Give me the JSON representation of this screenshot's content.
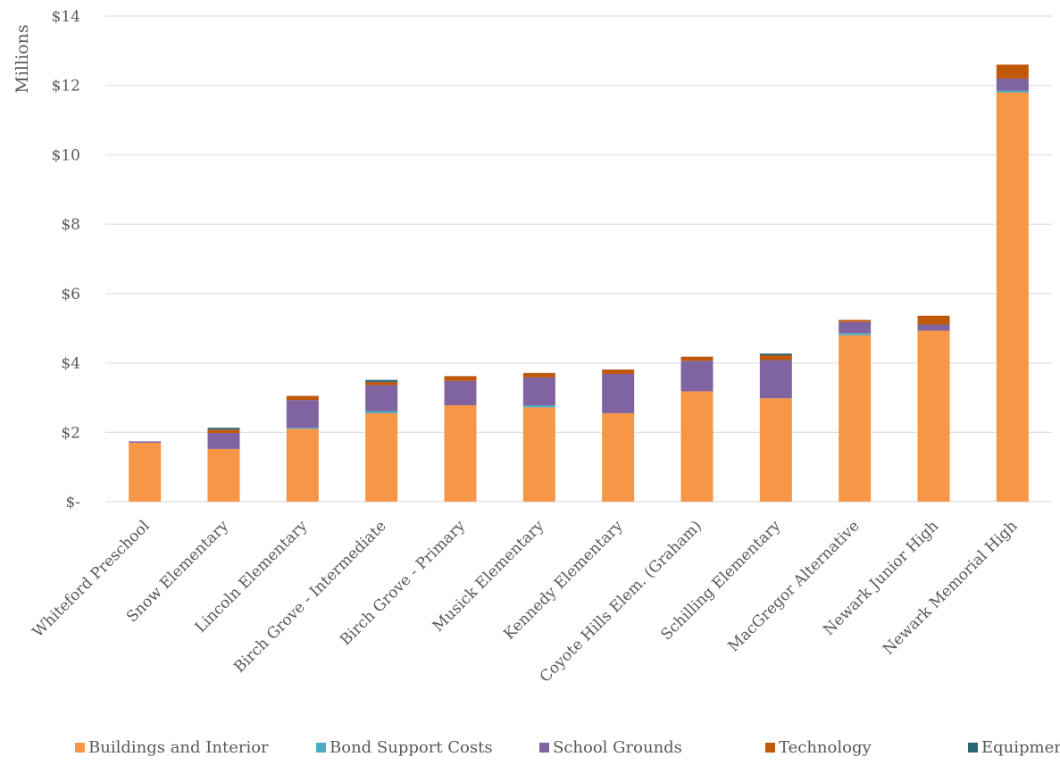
{
  "chart_data": {
    "type": "bar",
    "stacked": true,
    "ylabel": "Millions",
    "xlabel": "",
    "ylim": [
      0,
      14
    ],
    "ytick_step": 2,
    "ytick_labels": [
      "$-",
      "$2",
      "$4",
      "$6",
      "$8",
      "$10",
      "$12",
      "$14"
    ],
    "grid": true,
    "legend_position": "bottom",
    "categories": [
      "Whiteford Preschool",
      "Snow Elementary",
      "Lincoln Elementary",
      "Birch Grove - Intermediate",
      "Birch Grove - Primary",
      "Musick Elementary",
      "Kennedy Elementary",
      "Coyote Hills Elem. (Graham)",
      "Schilling Elementary",
      "MacGregor Alternative",
      "Newark Junior High",
      "Newark Memorial High"
    ],
    "series": [
      {
        "name": "Buildings and Interior",
        "color": "#F79646",
        "values": [
          1.7,
          1.52,
          2.1,
          2.55,
          2.78,
          2.72,
          2.55,
          3.18,
          2.98,
          4.8,
          4.93,
          11.8
        ]
      },
      {
        "name": "Bond Support Costs",
        "color": "#4BACC6",
        "values": [
          0.0,
          0.0,
          0.03,
          0.06,
          0.0,
          0.06,
          0.0,
          0.0,
          0.0,
          0.06,
          0.0,
          0.05
        ]
      },
      {
        "name": "School Grounds",
        "color": "#8064A2",
        "values": [
          0.04,
          0.46,
          0.8,
          0.75,
          0.7,
          0.8,
          1.13,
          0.88,
          1.1,
          0.32,
          0.18,
          0.35
        ]
      },
      {
        "name": "Technology",
        "color": "#C0580A",
        "values": [
          0.0,
          0.1,
          0.12,
          0.09,
          0.14,
          0.13,
          0.13,
          0.12,
          0.14,
          0.06,
          0.25,
          0.4
        ]
      },
      {
        "name": "Equipment",
        "color": "#2A6475",
        "values": [
          0.0,
          0.05,
          0.0,
          0.06,
          0.0,
          0.0,
          0.0,
          0.0,
          0.05,
          0.0,
          0.0,
          0.0
        ]
      }
    ]
  }
}
